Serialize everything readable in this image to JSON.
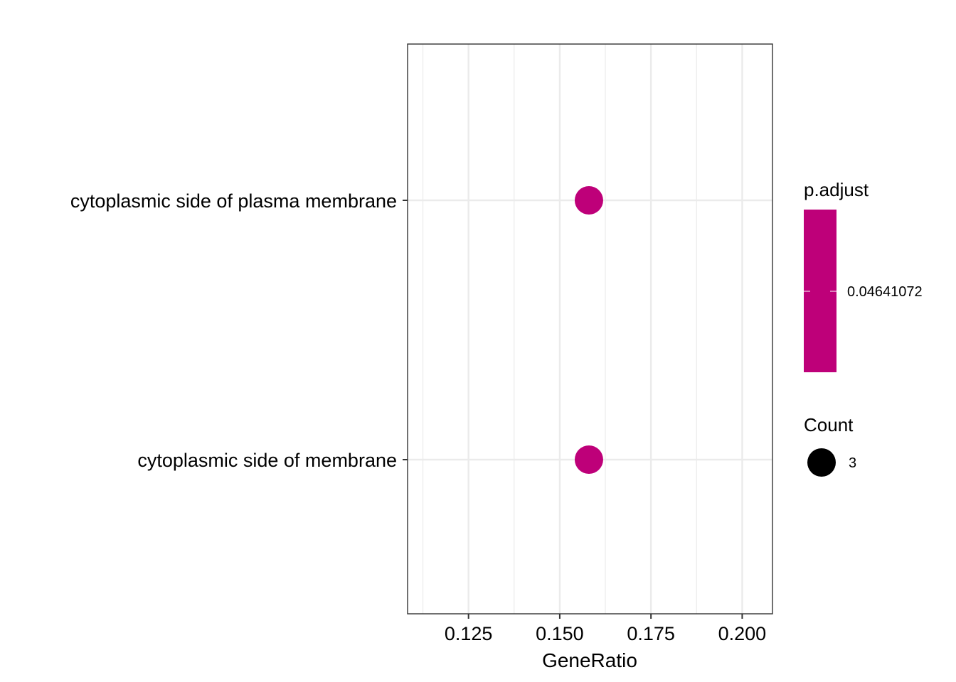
{
  "chart_data": {
    "type": "scatter",
    "title": "",
    "xlabel": "GeneRatio",
    "ylabel": "",
    "xlim": [
      0.1083,
      0.2083
    ],
    "x_ticks": [
      0.125,
      0.15,
      0.175,
      0.2
    ],
    "x_tick_labels": [
      "0.125",
      "0.150",
      "0.175",
      "0.200"
    ],
    "x_minor_ticks": [
      0.1125,
      0.1375,
      0.1625,
      0.1875
    ],
    "categories": [
      "cytoplasmic side of plasma membrane",
      "cytoplasmic side of membrane"
    ],
    "points": [
      {
        "category": "cytoplasmic side of plasma membrane",
        "x": 0.158,
        "count": 3,
        "p_adjust": 0.04641072
      },
      {
        "category": "cytoplasmic side of membrane",
        "x": 0.158,
        "count": 3,
        "p_adjust": 0.04641072
      }
    ],
    "grid": true,
    "point_color": "#BE0079",
    "legend": {
      "placement": "right",
      "color_title": "p.adjust",
      "color_label": "0.04641072",
      "color_value": 0.04641072,
      "size_title": "Count",
      "size_label": "3",
      "size_value": 3
    }
  }
}
